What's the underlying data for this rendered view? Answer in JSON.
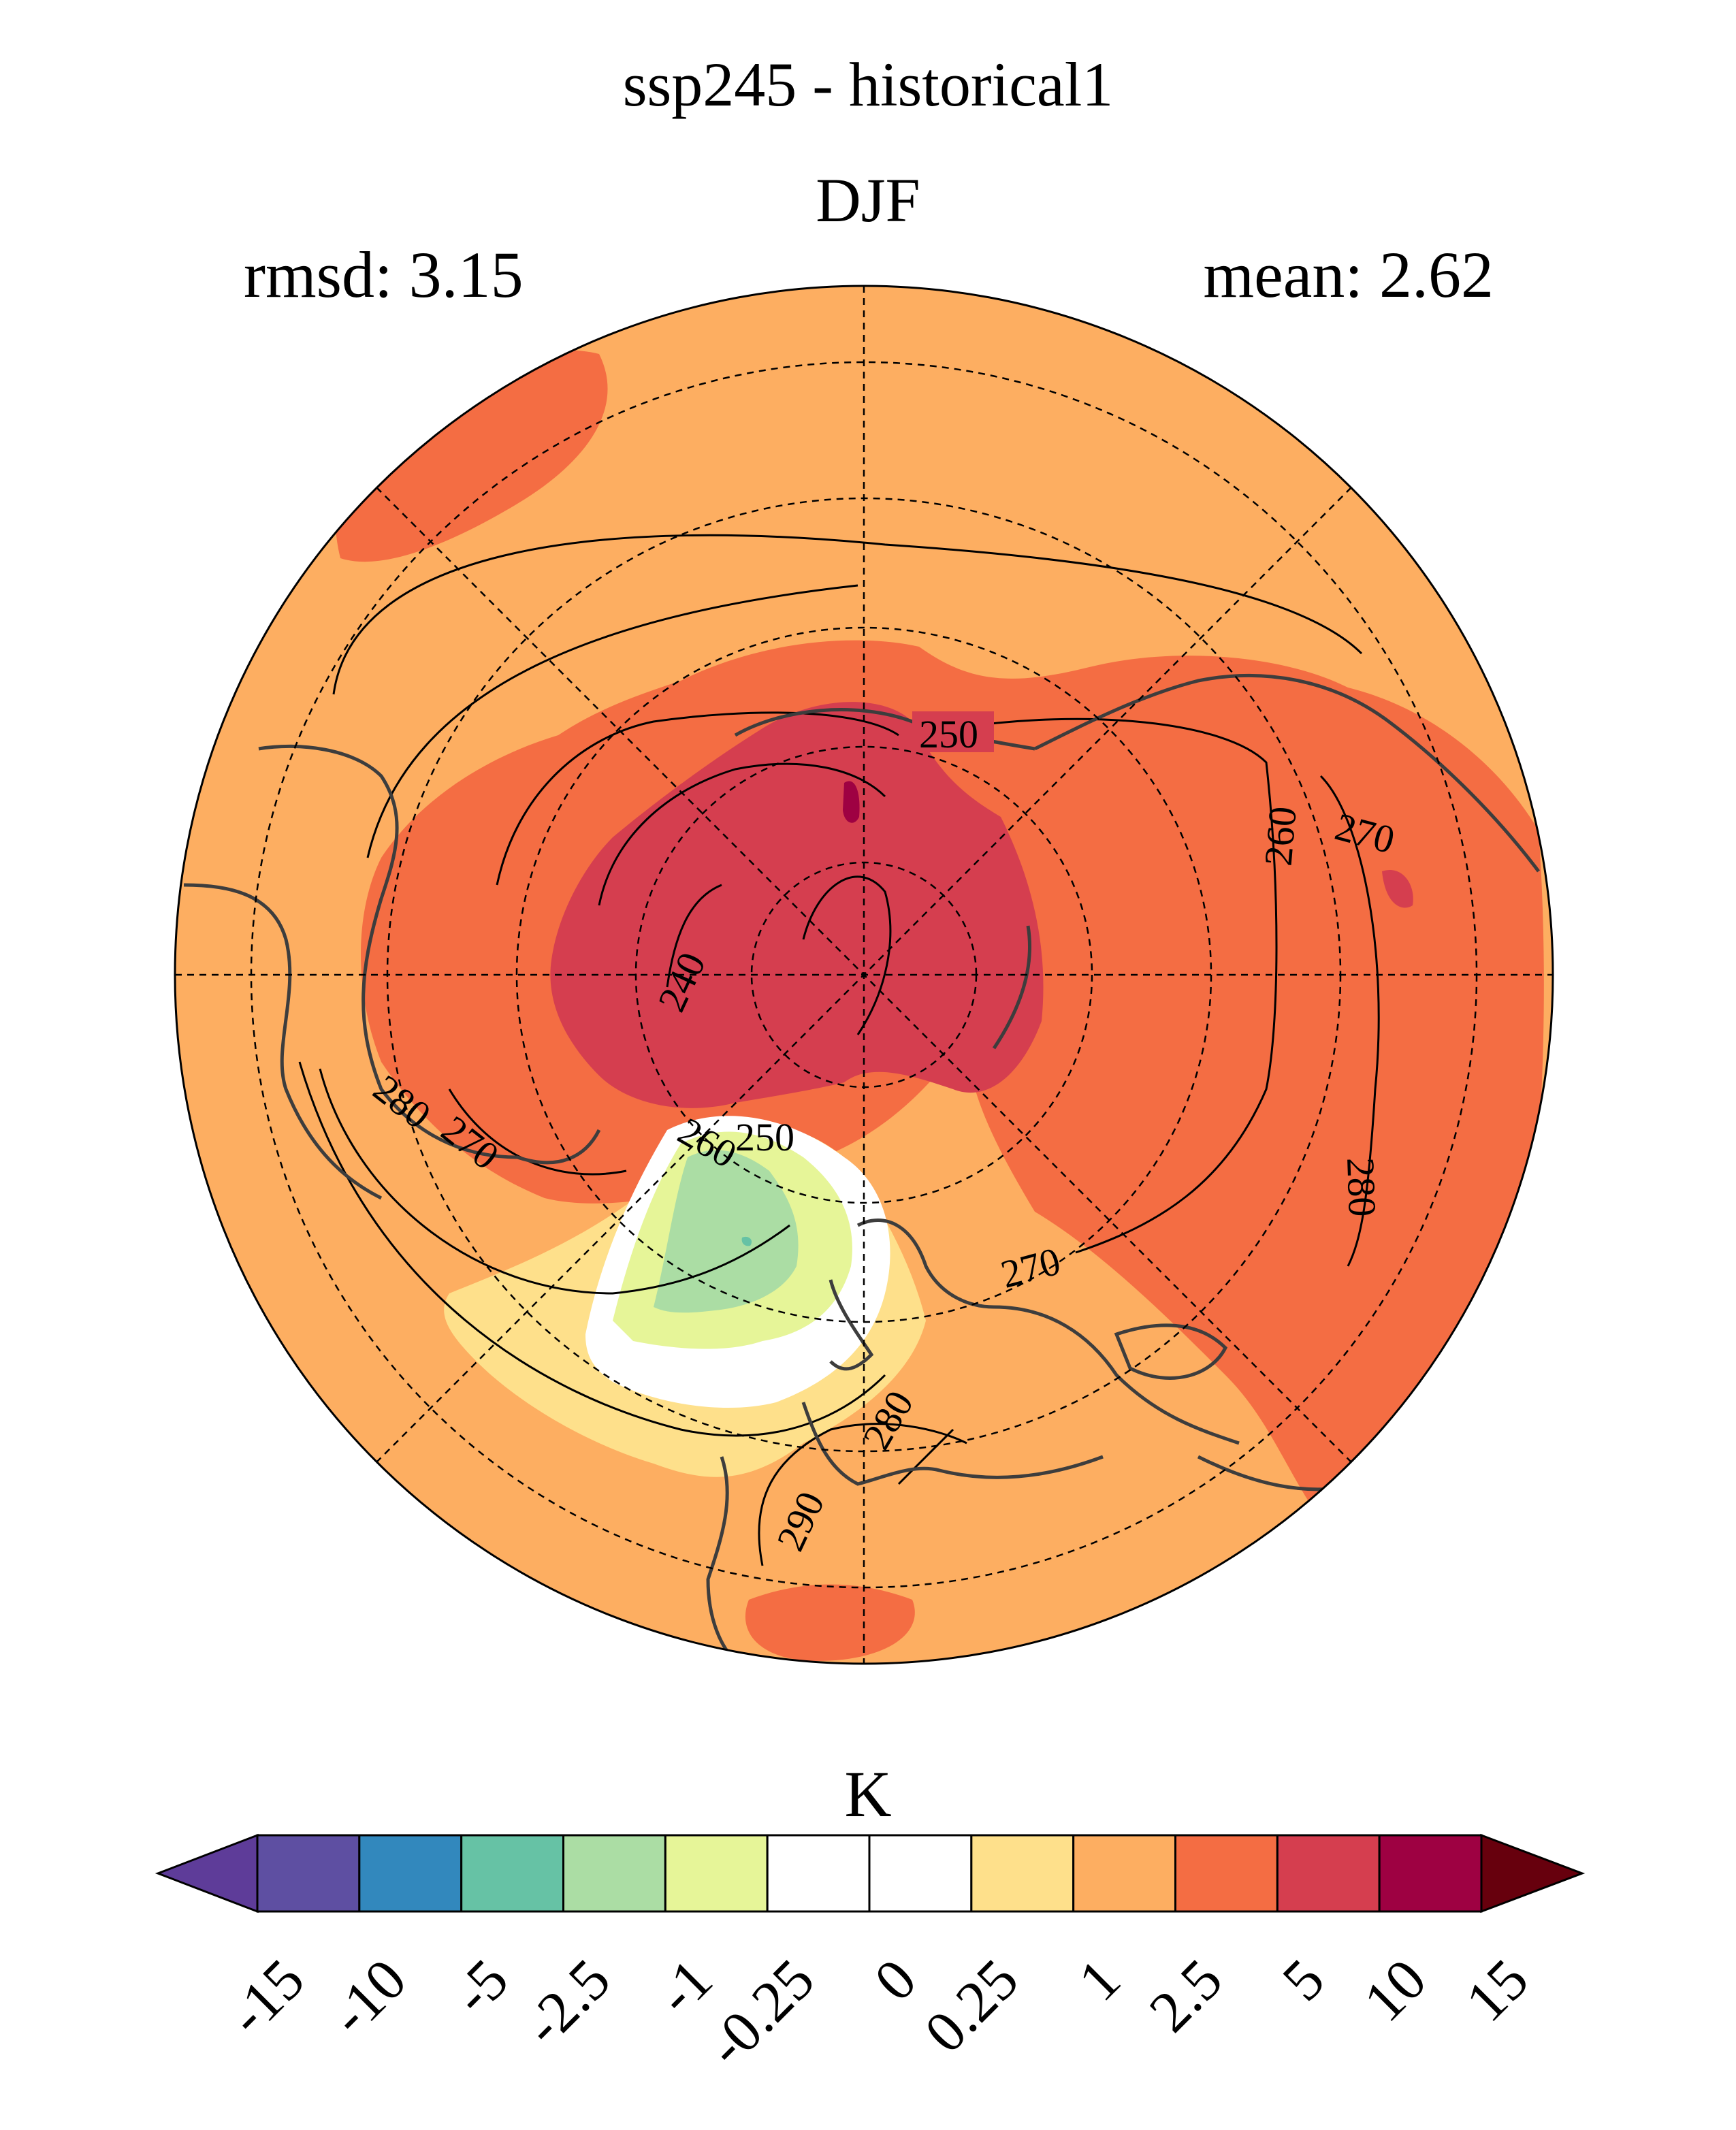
{
  "title": {
    "line1": "ssp245 - historical1",
    "line2": "DJF"
  },
  "stats": {
    "rmsd_label": "rmsd: 3.15",
    "mean_label": "mean: 2.62"
  },
  "colorbar": {
    "units": "K",
    "levels": [
      "-15",
      "-10",
      "-5",
      "-2.5",
      "-1",
      "-0.25",
      "0",
      "0.25",
      "1",
      "2.5",
      "5",
      "10",
      "15"
    ],
    "colors": [
      "#5e4fa2",
      "#3288bd",
      "#66c2a5",
      "#abdda4",
      "#e6f598",
      "#ffffff",
      "#ffffff",
      "#fee08b",
      "#fdae61",
      "#f46d43",
      "#d53e4f",
      "#9e0142"
    ],
    "under_color": "#5e3c99",
    "over_color": "#67000d"
  },
  "map": {
    "projection": "north polar stereographic",
    "background_color": "#fdae61",
    "contour_labels": [
      "250",
      "260",
      "270",
      "240",
      "280",
      "270",
      "260",
      "250",
      "280",
      "270",
      "280",
      "290"
    ]
  }
}
